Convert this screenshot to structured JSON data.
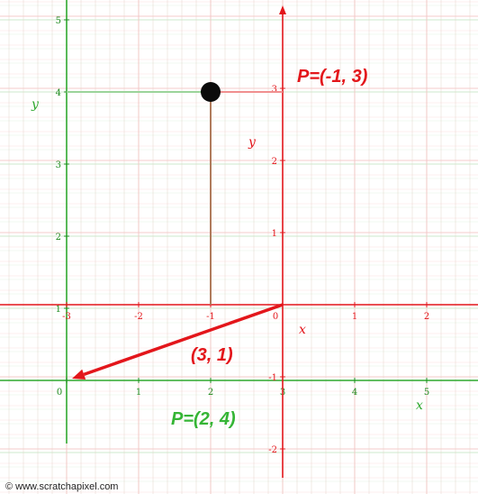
{
  "colors": {
    "red": "#e3161b",
    "green": "#2fa82f",
    "green_dark": "#1d8a1d",
    "grid_red": "#f4c6c6",
    "grid_green": "#c9e8c9",
    "brown": "#b07b5c",
    "point": "#0b0b0b"
  },
  "green_system": {
    "axis_x_label": "x",
    "axis_y_label": "y",
    "x_ticks": [
      "0",
      "1",
      "2",
      "3",
      "4",
      "5"
    ],
    "y_ticks": [
      "1",
      "2",
      "3",
      "4",
      "5"
    ],
    "point_label": "P=(2, 4)",
    "point": [
      2,
      4
    ]
  },
  "red_system": {
    "axis_x_label": "x",
    "axis_y_label": "y",
    "x_ticks": [
      "-3",
      "-2",
      "-1",
      "0",
      "1",
      "2"
    ],
    "y_ticks": [
      "-2",
      "-1",
      "1",
      "2",
      "3"
    ],
    "point_label": "P=(-1, 3)",
    "point": [
      -1,
      3
    ]
  },
  "vector_label": "(3, 1)",
  "credit": "© www.scratchapixel.com"
}
